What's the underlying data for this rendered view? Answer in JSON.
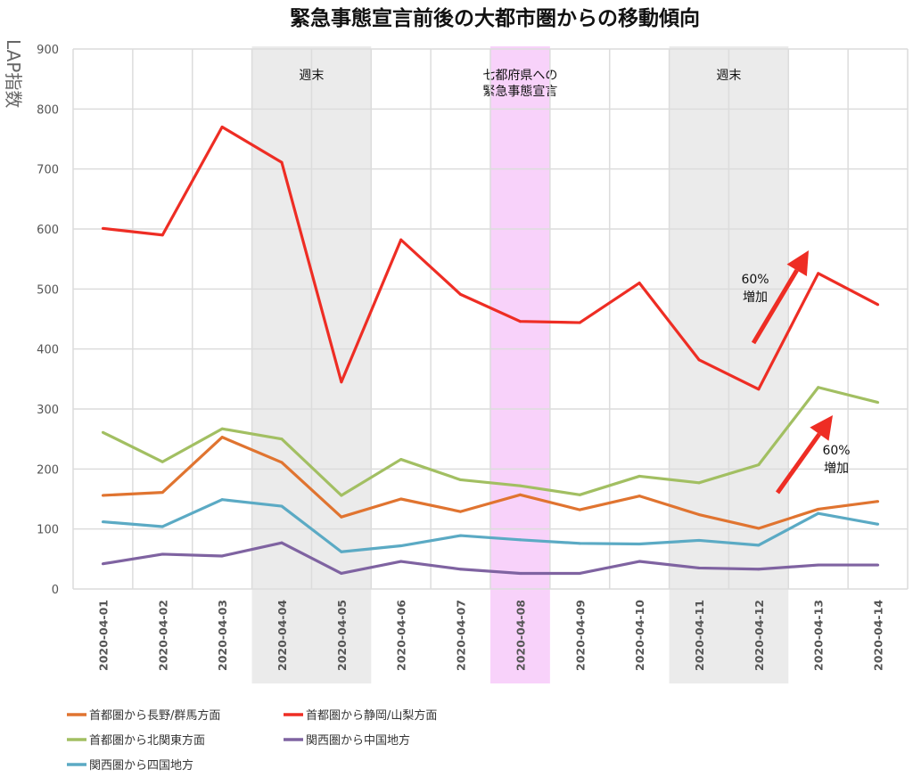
{
  "chart_data": {
    "type": "line",
    "title": "緊急事態宣言前後の大都市圏からの移動傾向",
    "ylabel": "LAP指数",
    "xlabel": "",
    "ylim": [
      0,
      900
    ],
    "yticks": [
      0,
      100,
      200,
      300,
      400,
      500,
      600,
      700,
      800,
      900
    ],
    "grid": true,
    "legend_position": "bottom",
    "categories": [
      "2020-04-01",
      "2020-04-02",
      "2020-04-03",
      "2020-04-04",
      "2020-04-05",
      "2020-04-06",
      "2020-04-07",
      "2020-04-08",
      "2020-04-09",
      "2020-04-10",
      "2020-04-11",
      "2020-04-12",
      "2020-04-13",
      "2020-04-14"
    ],
    "series": [
      {
        "name": "首都圏から長野/群馬方面",
        "color": "#E07430",
        "values": [
          156,
          161,
          253,
          211,
          120,
          150,
          129,
          157,
          132,
          155,
          124,
          101,
          133,
          146
        ]
      },
      {
        "name": "首都圏から静岡/山梨方面",
        "color": "#EE2D24",
        "values": [
          601,
          590,
          770,
          711,
          345,
          582,
          491,
          446,
          444,
          510,
          382,
          333,
          526,
          474
        ]
      },
      {
        "name": "首都圏から北関東方面",
        "color": "#A2BF62",
        "values": [
          261,
          212,
          267,
          250,
          156,
          216,
          182,
          172,
          157,
          188,
          177,
          207,
          336,
          311
        ]
      },
      {
        "name": "関西圏から中国地方",
        "color": "#7F63A1",
        "values": [
          42,
          58,
          55,
          77,
          26,
          46,
          33,
          26,
          26,
          46,
          35,
          33,
          40,
          40
        ]
      },
      {
        "name": "関西圏から四国地方",
        "color": "#5BAAC4",
        "values": [
          112,
          104,
          149,
          138,
          62,
          72,
          89,
          82,
          76,
          75,
          81,
          73,
          126,
          108
        ]
      }
    ],
    "bands": [
      {
        "label": "週末",
        "from": "2020-04-04",
        "to": "2020-04-05",
        "color": "#EBEBEB"
      },
      {
        "label": "七都府県への\n緊急事態宣言",
        "from": "2020-04-08",
        "to": "2020-04-08",
        "color": "#F8D2FA"
      },
      {
        "label": "週末",
        "from": "2020-04-11",
        "to": "2020-04-12",
        "color": "#EBEBEB"
      }
    ],
    "annotations": [
      {
        "text": "60%\n増加",
        "target_series": "首都圏から静岡/山梨方面",
        "color": "#EE2D24"
      },
      {
        "text": "60%\n増加",
        "target_series": "首都圏から北関東方面",
        "color": "#EE2D24"
      }
    ]
  }
}
